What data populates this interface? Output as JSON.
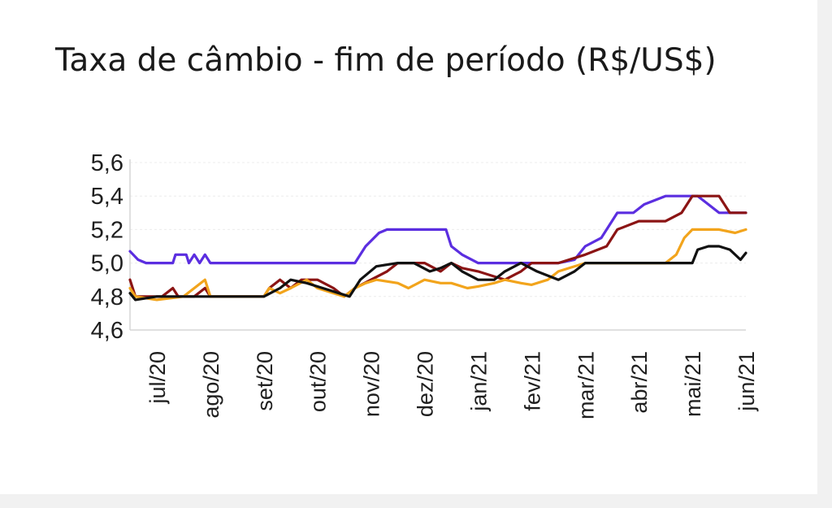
{
  "chart_data": {
    "type": "line",
    "title": "Taxa de câmbio - fim de período (R$/US$)",
    "xlabel": "",
    "ylabel": "",
    "ylim": [
      4.6,
      5.6
    ],
    "y_ticks": [
      "5,6",
      "5,4",
      "5,2",
      "5,0",
      "4,8",
      "4,6"
    ],
    "x_ticks": [
      "jul/20",
      "ago/20",
      "set/20",
      "out/20",
      "nov/20",
      "dez/20",
      "jan/21",
      "fev/21",
      "mar/21",
      "abr/21",
      "mai/21",
      "jun/21"
    ],
    "grid": true,
    "legend": "none",
    "series": [
      {
        "color": "#5b2ee0",
        "points": [
          [
            0,
            5.07
          ],
          [
            0.15,
            5.02
          ],
          [
            0.3,
            5.0
          ],
          [
            0.8,
            5.0
          ],
          [
            0.85,
            5.05
          ],
          [
            1.05,
            5.05
          ],
          [
            1.1,
            5.0
          ],
          [
            1.2,
            5.05
          ],
          [
            1.3,
            5.0
          ],
          [
            1.4,
            5.05
          ],
          [
            1.5,
            5.0
          ],
          [
            2.0,
            5.0
          ],
          [
            3.0,
            5.0
          ],
          [
            4.0,
            5.0
          ],
          [
            4.2,
            5.0
          ],
          [
            4.4,
            5.1
          ],
          [
            4.65,
            5.18
          ],
          [
            4.8,
            5.2
          ],
          [
            5.5,
            5.2
          ],
          [
            5.9,
            5.2
          ],
          [
            6.0,
            5.1
          ],
          [
            6.2,
            5.05
          ],
          [
            6.5,
            5.0
          ],
          [
            7.0,
            5.0
          ],
          [
            7.8,
            5.0
          ],
          [
            8.0,
            5.0
          ],
          [
            8.3,
            5.02
          ],
          [
            8.5,
            5.1
          ],
          [
            8.8,
            5.15
          ],
          [
            9.1,
            5.3
          ],
          [
            9.4,
            5.3
          ],
          [
            9.6,
            5.35
          ],
          [
            10.0,
            5.4
          ],
          [
            10.4,
            5.4
          ],
          [
            10.6,
            5.4
          ],
          [
            10.8,
            5.35
          ],
          [
            11.0,
            5.3
          ],
          [
            11.5,
            5.3
          ]
        ]
      },
      {
        "color": "#8b1414",
        "points": [
          [
            0,
            4.9
          ],
          [
            0.1,
            4.8
          ],
          [
            0.6,
            4.8
          ],
          [
            0.8,
            4.85
          ],
          [
            0.9,
            4.8
          ],
          [
            1.2,
            4.8
          ],
          [
            1.4,
            4.85
          ],
          [
            1.5,
            4.8
          ],
          [
            2.5,
            4.8
          ],
          [
            2.6,
            4.85
          ],
          [
            2.8,
            4.9
          ],
          [
            3.0,
            4.85
          ],
          [
            3.2,
            4.9
          ],
          [
            3.5,
            4.9
          ],
          [
            3.8,
            4.85
          ],
          [
            4.0,
            4.8
          ],
          [
            4.2,
            4.85
          ],
          [
            4.5,
            4.9
          ],
          [
            4.8,
            4.95
          ],
          [
            5.0,
            5.0
          ],
          [
            5.5,
            5.0
          ],
          [
            5.8,
            4.95
          ],
          [
            6.0,
            5.0
          ],
          [
            6.2,
            4.97
          ],
          [
            6.5,
            4.95
          ],
          [
            6.8,
            4.92
          ],
          [
            7.0,
            4.9
          ],
          [
            7.3,
            4.95
          ],
          [
            7.5,
            5.0
          ],
          [
            8.0,
            5.0
          ],
          [
            8.5,
            5.05
          ],
          [
            8.9,
            5.1
          ],
          [
            9.1,
            5.2
          ],
          [
            9.5,
            5.25
          ],
          [
            10.0,
            5.25
          ],
          [
            10.3,
            5.3
          ],
          [
            10.5,
            5.4
          ],
          [
            11.0,
            5.4
          ],
          [
            11.2,
            5.3
          ],
          [
            11.5,
            5.3
          ]
        ]
      },
      {
        "color": "#f2a41c",
        "points": [
          [
            0,
            4.85
          ],
          [
            0.1,
            4.8
          ],
          [
            0.5,
            4.78
          ],
          [
            1.0,
            4.8
          ],
          [
            1.4,
            4.9
          ],
          [
            1.5,
            4.8
          ],
          [
            2.5,
            4.8
          ],
          [
            2.6,
            4.85
          ],
          [
            2.8,
            4.82
          ],
          [
            3.0,
            4.85
          ],
          [
            3.3,
            4.9
          ],
          [
            3.5,
            4.85
          ],
          [
            3.8,
            4.82
          ],
          [
            4.0,
            4.8
          ],
          [
            4.2,
            4.85
          ],
          [
            4.4,
            4.88
          ],
          [
            4.6,
            4.9
          ],
          [
            5.0,
            4.88
          ],
          [
            5.2,
            4.85
          ],
          [
            5.5,
            4.9
          ],
          [
            5.8,
            4.88
          ],
          [
            6.0,
            4.88
          ],
          [
            6.3,
            4.85
          ],
          [
            6.5,
            4.86
          ],
          [
            6.8,
            4.88
          ],
          [
            7.0,
            4.9
          ],
          [
            7.3,
            4.88
          ],
          [
            7.5,
            4.87
          ],
          [
            7.8,
            4.9
          ],
          [
            8.0,
            4.95
          ],
          [
            8.5,
            5.0
          ],
          [
            10.0,
            5.0
          ],
          [
            10.2,
            5.05
          ],
          [
            10.35,
            5.15
          ],
          [
            10.5,
            5.2
          ],
          [
            11.0,
            5.2
          ],
          [
            11.3,
            5.18
          ],
          [
            11.5,
            5.2
          ]
        ]
      },
      {
        "color": "#111111",
        "points": [
          [
            0,
            4.82
          ],
          [
            0.1,
            4.78
          ],
          [
            0.5,
            4.8
          ],
          [
            1.0,
            4.8
          ],
          [
            1.5,
            4.8
          ],
          [
            2.0,
            4.8
          ],
          [
            2.5,
            4.8
          ],
          [
            2.8,
            4.85
          ],
          [
            3.0,
            4.9
          ],
          [
            3.3,
            4.88
          ],
          [
            3.6,
            4.85
          ],
          [
            3.9,
            4.82
          ],
          [
            4.1,
            4.8
          ],
          [
            4.3,
            4.9
          ],
          [
            4.6,
            4.98
          ],
          [
            5.0,
            5.0
          ],
          [
            5.3,
            5.0
          ],
          [
            5.6,
            4.95
          ],
          [
            5.8,
            4.97
          ],
          [
            6.0,
            5.0
          ],
          [
            6.2,
            4.95
          ],
          [
            6.5,
            4.9
          ],
          [
            6.8,
            4.9
          ],
          [
            7.0,
            4.95
          ],
          [
            7.3,
            5.0
          ],
          [
            7.6,
            4.95
          ],
          [
            8.0,
            4.9
          ],
          [
            8.3,
            4.95
          ],
          [
            8.5,
            5.0
          ],
          [
            9.0,
            5.0
          ],
          [
            10.0,
            5.0
          ],
          [
            10.5,
            5.0
          ],
          [
            10.6,
            5.08
          ],
          [
            10.8,
            5.1
          ],
          [
            11.0,
            5.1
          ],
          [
            11.2,
            5.08
          ],
          [
            11.4,
            5.02
          ],
          [
            11.5,
            5.06
          ]
        ]
      }
    ]
  }
}
